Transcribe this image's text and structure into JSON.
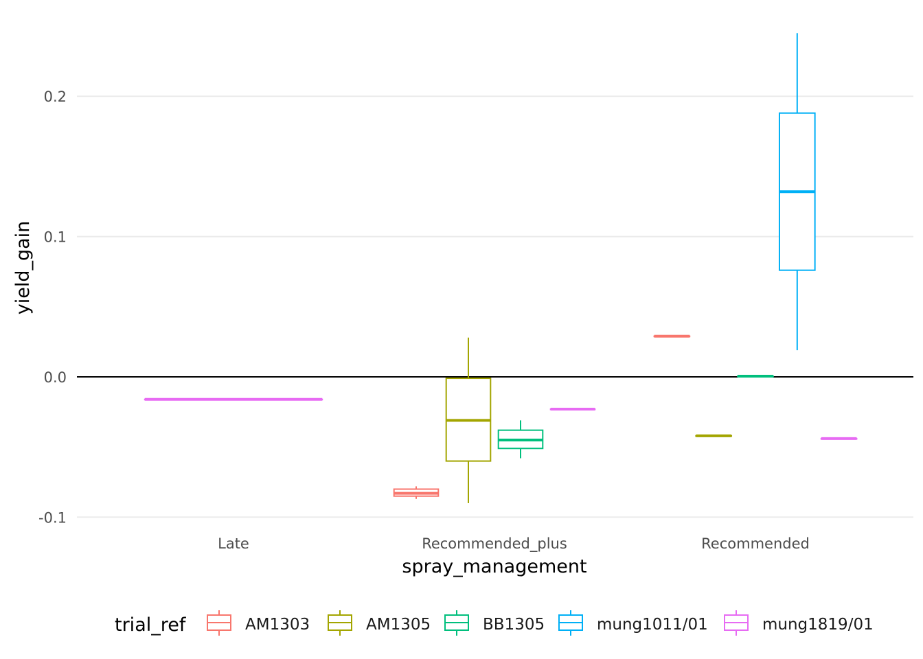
{
  "chart_data": {
    "type": "boxplot",
    "xlabel": "spray_management",
    "ylabel": "yield_gain",
    "categories": [
      "Late",
      "Recommended_plus",
      "Recommended"
    ],
    "ylim": [
      -0.1,
      0.245
    ],
    "yticks": [
      -0.1,
      0.0,
      0.1,
      0.2
    ],
    "ytick_labels": [
      "-0.1",
      "0.0",
      "0.1",
      "0.2"
    ],
    "reference_line": 0.0,
    "grid": true,
    "legend": {
      "title": "trial_ref",
      "position": "bottom",
      "entries": [
        "AM1303",
        "AM1305",
        "BB1305",
        "mung1011/01",
        "mung1819/01"
      ]
    },
    "series": [
      {
        "name": "AM1303",
        "color": "#F8766D",
        "boxes": [
          {
            "category": "Recommended_plus",
            "min": -0.087,
            "q1": -0.085,
            "median": -0.083,
            "q3": -0.08,
            "max": -0.078
          },
          {
            "category": "Recommended",
            "min": 0.029,
            "q1": 0.029,
            "median": 0.029,
            "q3": 0.029,
            "max": 0.029
          }
        ]
      },
      {
        "name": "AM1305",
        "color": "#A3A500",
        "boxes": [
          {
            "category": "Recommended_plus",
            "min": -0.09,
            "q1": -0.06,
            "median": -0.031,
            "q3": -0.001,
            "max": 0.028
          },
          {
            "category": "Recommended",
            "min": -0.042,
            "q1": -0.042,
            "median": -0.042,
            "q3": -0.042,
            "max": -0.042
          }
        ]
      },
      {
        "name": "BB1305",
        "color": "#00BF7D",
        "boxes": [
          {
            "category": "Recommended_plus",
            "min": -0.058,
            "q1": -0.051,
            "median": -0.045,
            "q3": -0.038,
            "max": -0.031
          },
          {
            "category": "Recommended",
            "min": 0.0005,
            "q1": 0.0005,
            "median": 0.0005,
            "q3": 0.0005,
            "max": 0.0005
          }
        ]
      },
      {
        "name": "mung1011/01",
        "color": "#00B0F6",
        "boxes": [
          {
            "category": "Recommended",
            "min": 0.019,
            "q1": 0.076,
            "median": 0.132,
            "q3": 0.188,
            "max": 0.245
          }
        ]
      },
      {
        "name": "mung1819/01",
        "color": "#E76BF3",
        "boxes": [
          {
            "category": "Late",
            "min": -0.016,
            "q1": -0.016,
            "median": -0.016,
            "q3": -0.016,
            "max": -0.016
          },
          {
            "category": "Recommended_plus",
            "min": -0.023,
            "q1": -0.023,
            "median": -0.023,
            "q3": -0.023,
            "max": -0.023
          },
          {
            "category": "Recommended",
            "min": -0.044,
            "q1": -0.044,
            "median": -0.044,
            "q3": -0.044,
            "max": -0.044
          }
        ]
      }
    ]
  }
}
